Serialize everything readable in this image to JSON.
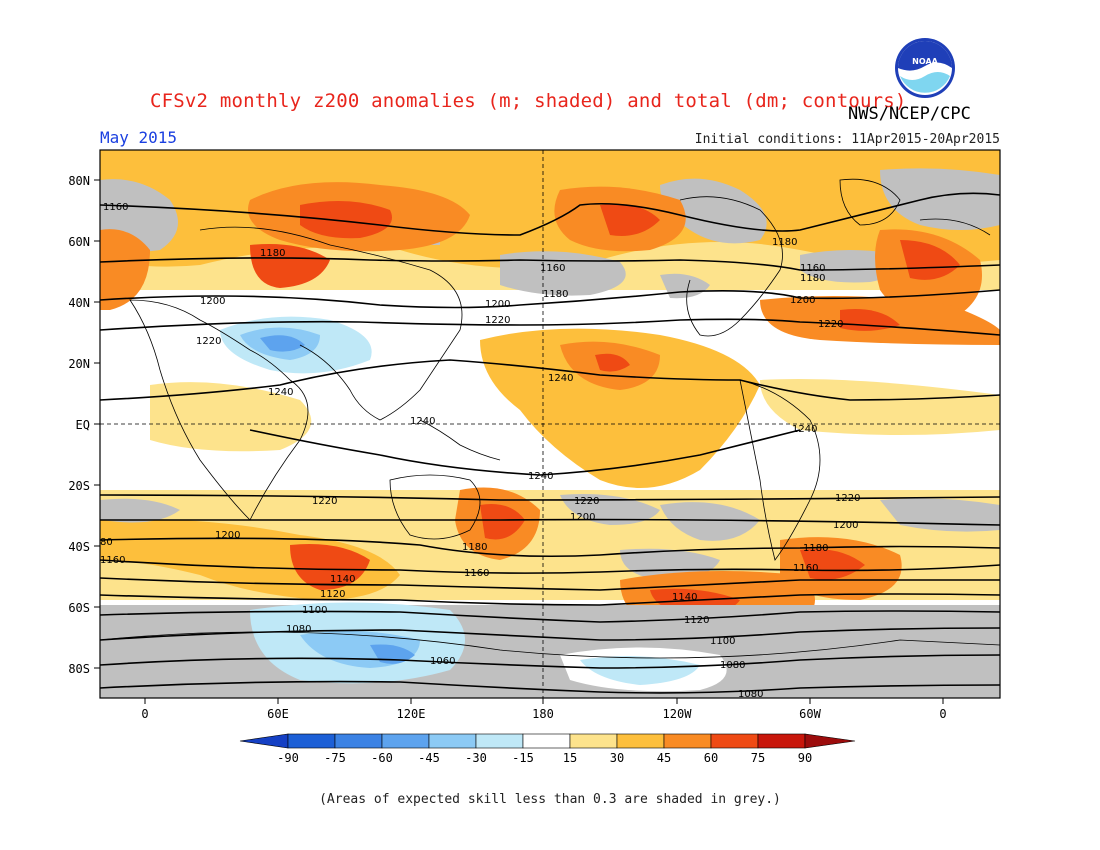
{
  "header": {
    "title": "CFSv2 monthly z200 anomalies (m; shaded) and total (dm; contours)",
    "agency": "NWS/NCEP/CPC",
    "month": "May 2015",
    "initial_conditions": "Initial conditions: 11Apr2015-20Apr2015",
    "logo_text": "NOAA"
  },
  "map": {
    "lat_labels": [
      "80N",
      "60N",
      "40N",
      "20N",
      "EQ",
      "20S",
      "40S",
      "60S",
      "80S"
    ],
    "lon_labels": [
      "0",
      "60E",
      "120E",
      "180",
      "120W",
      "60W",
      "0"
    ],
    "contour_labels": [
      "1160",
      "1180",
      "1200",
      "1220",
      "1240",
      "1240",
      "1240",
      "1240",
      "1220",
      "1200",
      "1180",
      "1160",
      "1140",
      "1120",
      "1100",
      "1080",
      "1060",
      "1080",
      "1100",
      "1120",
      "1140",
      "1160",
      "1180",
      "1200",
      "1220",
      "1180",
      "1160",
      "1200",
      "1220",
      "1240",
      "1180",
      "1200",
      "1220",
      "1180",
      "1160",
      "1160",
      "1200",
      "1220",
      "1200",
      "1180",
      "1160",
      "80",
      "1160",
      "1240",
      "1220",
      "1200"
    ],
    "grey_skill_color": "#c0c0c0"
  },
  "colorbar": {
    "levels": [
      "-90",
      "-75",
      "-60",
      "-45",
      "-30",
      "-15",
      "15",
      "30",
      "45",
      "60",
      "75",
      "90"
    ],
    "colors": [
      "#1c5fd6",
      "#3b82e4",
      "#5da3ee",
      "#8ccaf5",
      "#bfe8f7",
      "#ffffff",
      "#fde38c",
      "#fdbf3c",
      "#f98b24",
      "#ef4a14",
      "#c8160b"
    ],
    "left_arrow_color": "#1540c4",
    "right_arrow_color": "#9c0c0c"
  },
  "footnote": "(Areas of expected skill less than 0.3 are shaded in grey.)"
}
